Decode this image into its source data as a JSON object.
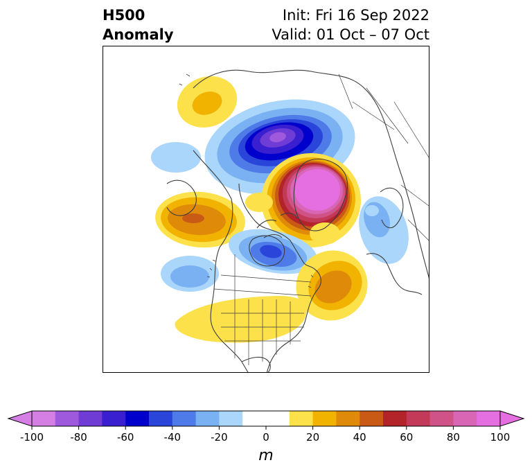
{
  "title": {
    "left_line1": "H500",
    "left_line2": "Anomaly",
    "right_line1": "Init: Fri 16 Sep 2022",
    "right_line2": "Valid: 01 Oct – 07 Oct"
  },
  "colorbar": {
    "unit_label": "m",
    "min": -100,
    "max": 100,
    "ticks": [
      "-100",
      "-80",
      "-60",
      "-40",
      "-20",
      "0",
      "20",
      "40",
      "60",
      "80",
      "100"
    ],
    "bin_edges": [
      -100,
      -90,
      -80,
      -70,
      -60,
      -50,
      -40,
      -30,
      -20,
      -10,
      10,
      20,
      30,
      40,
      50,
      60,
      70,
      80,
      90,
      100
    ],
    "colors": [
      "#d57ee4",
      "#9f59dd",
      "#6f3cd5",
      "#3a1fd0",
      "#0000cd",
      "#2a45d9",
      "#4f7be8",
      "#79b1f2",
      "#aad6fb",
      "#ffffff",
      "#fce14b",
      "#f1b300",
      "#e08a0a",
      "#c85a16",
      "#b3242a",
      "#c33a58",
      "#cf5386",
      "#d866b5",
      "#e56ee0"
    ],
    "extend_low_color": "#d57ee4",
    "extend_high_color": "#e56ee0"
  },
  "map": {
    "projection": "polar stereographic, North America / Arctic view",
    "anomaly_centers": [
      {
        "name": "greenland-arctic-ridge",
        "sign": "positive",
        "max_m": 100
      },
      {
        "name": "siberia-arctic-trough",
        "sign": "negative",
        "max_m": -80
      },
      {
        "name": "hudson-bay-trough",
        "sign": "negative",
        "max_m": -50
      },
      {
        "name": "eastern-us-ridge",
        "sign": "positive",
        "max_m": 40
      },
      {
        "name": "north-atlantic-ridge",
        "sign": "positive",
        "max_m": 40
      },
      {
        "name": "north-pacific-ridge",
        "sign": "positive",
        "max_m": 40
      },
      {
        "name": "east-pacific-trough",
        "sign": "negative",
        "max_m": -30
      },
      {
        "name": "southern-us-ridge",
        "sign": "positive",
        "max_m": 20
      },
      {
        "name": "siberia-ridge",
        "sign": "positive",
        "max_m": 20
      },
      {
        "name": "europe-trough",
        "sign": "negative",
        "max_m": -20
      }
    ]
  }
}
